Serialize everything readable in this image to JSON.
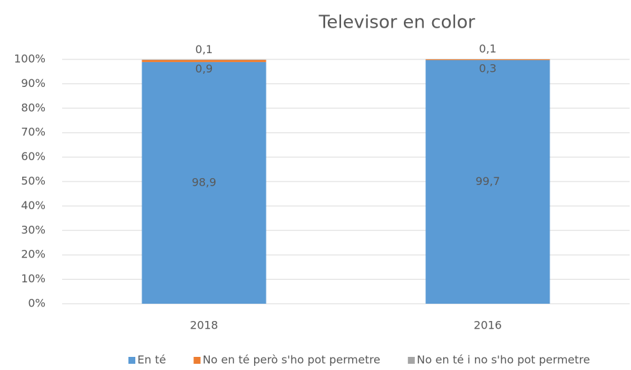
{
  "chart_data": {
    "type": "stacked_bar",
    "title": "Televisor en color",
    "categories": [
      "2018",
      "2016"
    ],
    "series": [
      {
        "name": "En té",
        "color": "#5b9bd5",
        "values": [
          98.9,
          99.7
        ],
        "value_labels": [
          "98,9",
          "99,7"
        ]
      },
      {
        "name": "No en té però s'ho pot permetre",
        "color": "#ed7d31",
        "values": [
          0.9,
          0.3
        ],
        "value_labels": [
          "0,9",
          "0,3"
        ]
      },
      {
        "name": "No en té i no s'ho pot permetre",
        "color": "#a5a5a5",
        "values": [
          0.1,
          0.1
        ],
        "value_labels": [
          "0,1",
          "0,1"
        ]
      }
    ],
    "ylim": [
      0,
      100
    ],
    "yticks": [
      {
        "value": 0,
        "label": "0%"
      },
      {
        "value": 10,
        "label": "10%"
      },
      {
        "value": 20,
        "label": "20%"
      },
      {
        "value": 30,
        "label": "30%"
      },
      {
        "value": 40,
        "label": "40%"
      },
      {
        "value": 50,
        "label": "50%"
      },
      {
        "value": 60,
        "label": "60%"
      },
      {
        "value": 70,
        "label": "70%"
      },
      {
        "value": 80,
        "label": "80%"
      },
      {
        "value": 90,
        "label": "90%"
      },
      {
        "value": 100,
        "label": "100%"
      }
    ],
    "grid": true,
    "legend": "bottom"
  }
}
